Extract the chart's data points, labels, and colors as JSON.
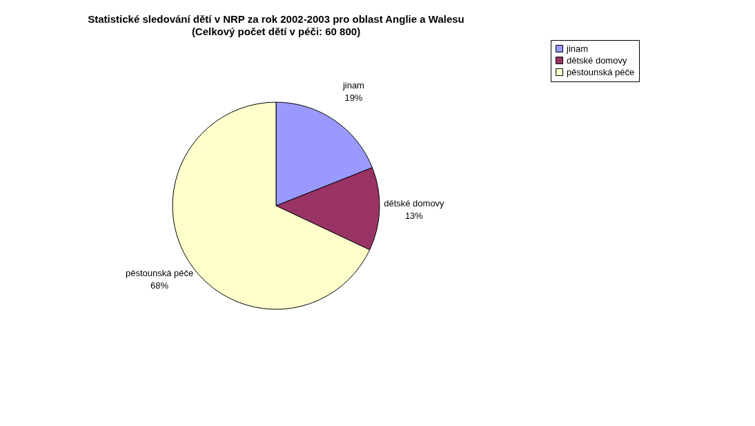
{
  "chart_data": {
    "type": "pie",
    "title": "Statistické sledování dětí v NRP za rok 2002-2003 pro oblast Anglie a Walesu",
    "subtitle": "(Celkový počet dětí v péči: 60 800)",
    "categories": [
      "jinam",
      "dětské domovy",
      "pěstounská péče"
    ],
    "values": [
      19,
      13,
      68
    ],
    "colors": [
      "#9999ff",
      "#993366",
      "#ffffcc"
    ],
    "value_labels": [
      "19%",
      "13%",
      "68%"
    ],
    "legend": "right"
  }
}
